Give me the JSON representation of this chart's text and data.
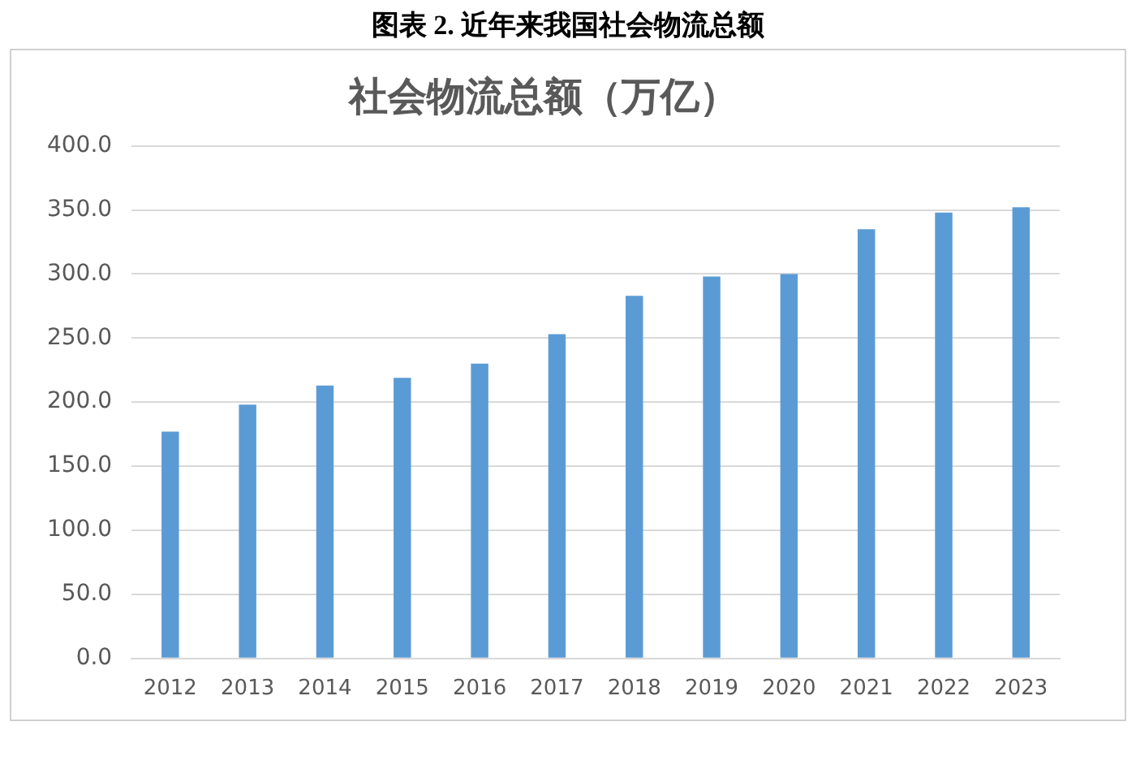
{
  "chart_data": {
    "type": "bar",
    "title": "图表 2. 近年来我国社会物流总额",
    "subtitle": "社会物流总额（万亿）",
    "categories": [
      "2012",
      "2013",
      "2014",
      "2015",
      "2016",
      "2017",
      "2018",
      "2019",
      "2020",
      "2021",
      "2022",
      "2023"
    ],
    "values": [
      177,
      198,
      213,
      219,
      230,
      253,
      283,
      298,
      300,
      335,
      348,
      352
    ],
    "color": "#5b9bd5",
    "ylim": [
      0,
      400
    ],
    "yticks": [
      {
        "value": 0,
        "label": "0.0"
      },
      {
        "value": 50,
        "label": "50.0"
      },
      {
        "value": 100,
        "label": "100.0"
      },
      {
        "value": 150,
        "label": "150.0"
      },
      {
        "value": 200,
        "label": "200.0"
      },
      {
        "value": 250,
        "label": "250.0"
      },
      {
        "value": 300,
        "label": "300.0"
      },
      {
        "value": 350,
        "label": "350.0"
      },
      {
        "value": 400,
        "label": "400.0"
      }
    ],
    "grid": "y"
  }
}
